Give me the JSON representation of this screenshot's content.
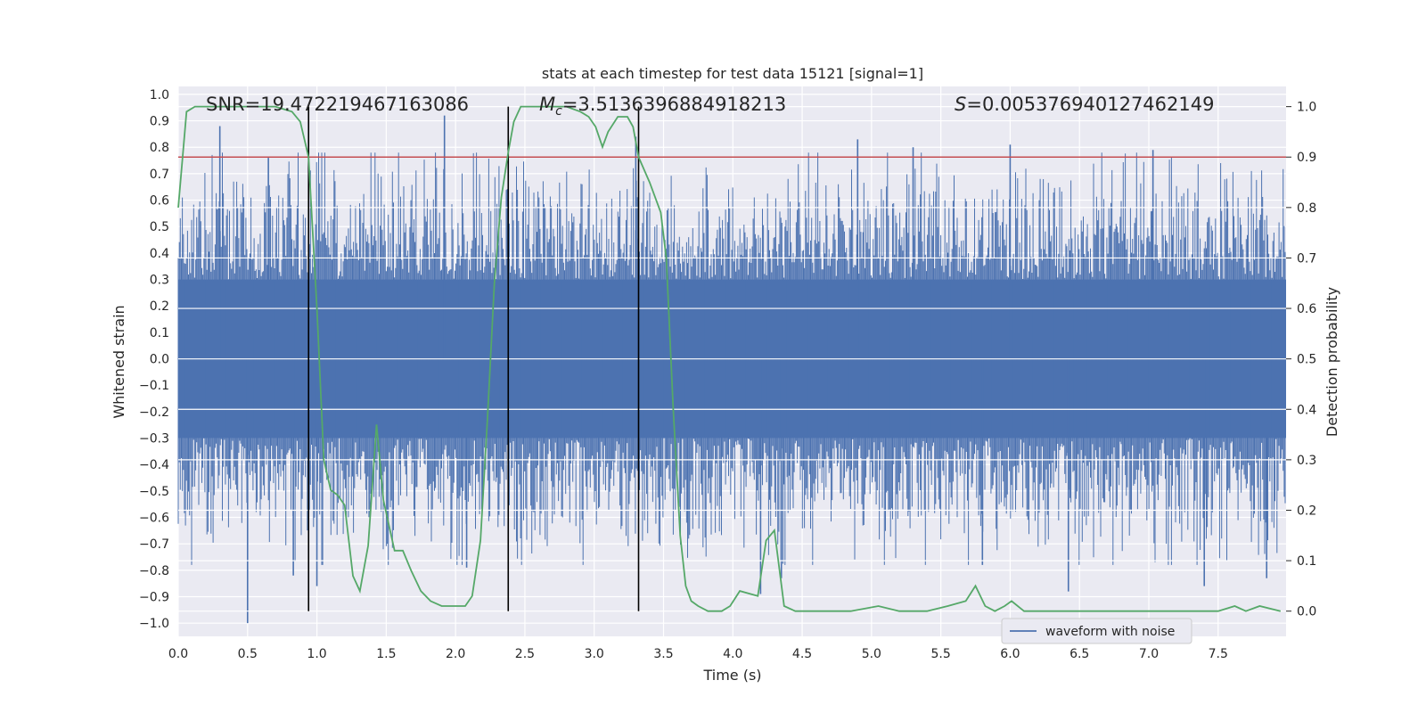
{
  "chart_data": {
    "type": "line",
    "title": "stats at each timestep for test data 15121 [signal=1]",
    "xlabel": "Time (s)",
    "ylabel_left": "Whitened strain",
    "ylabel_right": "Detection probability",
    "xlim": [
      0,
      7.99
    ],
    "ylim_left": [
      -1.05,
      1.03
    ],
    "ylim_right": [
      -0.05,
      1.04
    ],
    "x_ticks": [
      "0.0",
      "0.5",
      "1.0",
      "1.5",
      "2.0",
      "2.5",
      "3.0",
      "3.5",
      "4.0",
      "4.5",
      "5.0",
      "5.5",
      "6.0",
      "6.5",
      "7.0",
      "7.5"
    ],
    "y_left_ticks": [
      "1.0",
      "0.9",
      "0.8",
      "0.7",
      "0.6",
      "0.5",
      "0.4",
      "0.3",
      "0.2",
      "0.1",
      "0.0",
      "−0.1",
      "−0.2",
      "−0.3",
      "−0.4",
      "−0.5",
      "−0.6",
      "−0.7",
      "−0.8",
      "−0.9",
      "−1.0"
    ],
    "y_right_ticks": [
      "1.0",
      "0.9",
      "0.8",
      "0.7",
      "0.6",
      "0.5",
      "0.4",
      "0.3",
      "0.2",
      "0.1",
      "0.0"
    ],
    "annotations": {
      "snr": "SNR=19.472219467163086",
      "mc_symbol": "M",
      "mc_sub": "c",
      "mc_value": "=3.5136396884918213",
      "s_symbol": "S",
      "s_value": "=0.005376940127462149"
    },
    "threshold": {
      "value": 0.9,
      "color": "#c44e52"
    },
    "vlines": [
      0.94,
      2.38,
      3.32
    ],
    "legend": [
      {
        "name": "waveform with noise",
        "color": "#4c72b0"
      }
    ],
    "series": [
      {
        "name": "waveform with noise",
        "axis": "left",
        "color": "#4c72b0",
        "description": "dense whitened strain, core ~[-0.45, 0.42] with spikes",
        "spikes": [
          {
            "x": 0.3,
            "y": 0.88
          },
          {
            "x": 0.5,
            "y": -1.0
          },
          {
            "x": 0.65,
            "y": 0.76
          },
          {
            "x": 0.83,
            "y": -0.82
          },
          {
            "x": 1.0,
            "y": -0.86
          },
          {
            "x": 1.92,
            "y": 0.92
          },
          {
            "x": 2.08,
            "y": -0.79
          },
          {
            "x": 3.3,
            "y": 0.84
          },
          {
            "x": 4.2,
            "y": -0.89
          },
          {
            "x": 4.35,
            "y": -0.83
          },
          {
            "x": 4.9,
            "y": 0.83
          },
          {
            "x": 5.3,
            "y": 0.8
          },
          {
            "x": 5.8,
            "y": -0.78
          },
          {
            "x": 6.0,
            "y": 0.81
          },
          {
            "x": 6.42,
            "y": -0.88
          },
          {
            "x": 7.03,
            "y": 0.79
          },
          {
            "x": 7.4,
            "y": -0.86
          },
          {
            "x": 7.85,
            "y": -0.83
          }
        ]
      },
      {
        "name": "detection probability",
        "axis": "right",
        "color": "#55a868",
        "points": [
          [
            0.0,
            0.8
          ],
          [
            0.06,
            0.99
          ],
          [
            0.12,
            1.0
          ],
          [
            0.3,
            1.0
          ],
          [
            0.5,
            1.0
          ],
          [
            0.7,
            1.0
          ],
          [
            0.82,
            0.99
          ],
          [
            0.88,
            0.97
          ],
          [
            0.94,
            0.9
          ],
          [
            1.0,
            0.6
          ],
          [
            1.05,
            0.3
          ],
          [
            1.1,
            0.24
          ],
          [
            1.15,
            0.23
          ],
          [
            1.2,
            0.21
          ],
          [
            1.26,
            0.07
          ],
          [
            1.31,
            0.04
          ],
          [
            1.37,
            0.13
          ],
          [
            1.43,
            0.37
          ],
          [
            1.48,
            0.22
          ],
          [
            1.56,
            0.12
          ],
          [
            1.62,
            0.12
          ],
          [
            1.68,
            0.08
          ],
          [
            1.75,
            0.04
          ],
          [
            1.82,
            0.02
          ],
          [
            1.9,
            0.01
          ],
          [
            2.0,
            0.01
          ],
          [
            2.07,
            0.01
          ],
          [
            2.12,
            0.03
          ],
          [
            2.18,
            0.14
          ],
          [
            2.23,
            0.38
          ],
          [
            2.28,
            0.65
          ],
          [
            2.33,
            0.82
          ],
          [
            2.38,
            0.91
          ],
          [
            2.42,
            0.97
          ],
          [
            2.47,
            1.0
          ],
          [
            2.52,
            1.0
          ],
          [
            2.6,
            1.0
          ],
          [
            2.7,
            1.0
          ],
          [
            2.8,
            1.0
          ],
          [
            2.9,
            0.99
          ],
          [
            2.96,
            0.98
          ],
          [
            3.01,
            0.96
          ],
          [
            3.06,
            0.92
          ],
          [
            3.1,
            0.95
          ],
          [
            3.17,
            0.98
          ],
          [
            3.24,
            0.98
          ],
          [
            3.28,
            0.96
          ],
          [
            3.32,
            0.9
          ],
          [
            3.4,
            0.85
          ],
          [
            3.48,
            0.79
          ],
          [
            3.52,
            0.7
          ],
          [
            3.57,
            0.4
          ],
          [
            3.62,
            0.15
          ],
          [
            3.66,
            0.05
          ],
          [
            3.7,
            0.02
          ],
          [
            3.75,
            0.01
          ],
          [
            3.82,
            0.0
          ],
          [
            3.92,
            0.0
          ],
          [
            3.98,
            0.01
          ],
          [
            4.05,
            0.04
          ],
          [
            4.18,
            0.03
          ],
          [
            4.24,
            0.14
          ],
          [
            4.3,
            0.16
          ],
          [
            4.37,
            0.01
          ],
          [
            4.45,
            0.0
          ],
          [
            4.6,
            0.0
          ],
          [
            4.85,
            0.0
          ],
          [
            5.05,
            0.01
          ],
          [
            5.2,
            0.0
          ],
          [
            5.4,
            0.0
          ],
          [
            5.55,
            0.01
          ],
          [
            5.68,
            0.02
          ],
          [
            5.75,
            0.05
          ],
          [
            5.82,
            0.01
          ],
          [
            5.89,
            0.0
          ],
          [
            5.96,
            0.01
          ],
          [
            6.01,
            0.02
          ],
          [
            6.1,
            0.0
          ],
          [
            6.4,
            0.0
          ],
          [
            6.8,
            0.0
          ],
          [
            7.2,
            0.0
          ],
          [
            7.5,
            0.0
          ],
          [
            7.62,
            0.01
          ],
          [
            7.7,
            0.0
          ],
          [
            7.8,
            0.01
          ],
          [
            7.95,
            0.0
          ]
        ]
      }
    ]
  }
}
